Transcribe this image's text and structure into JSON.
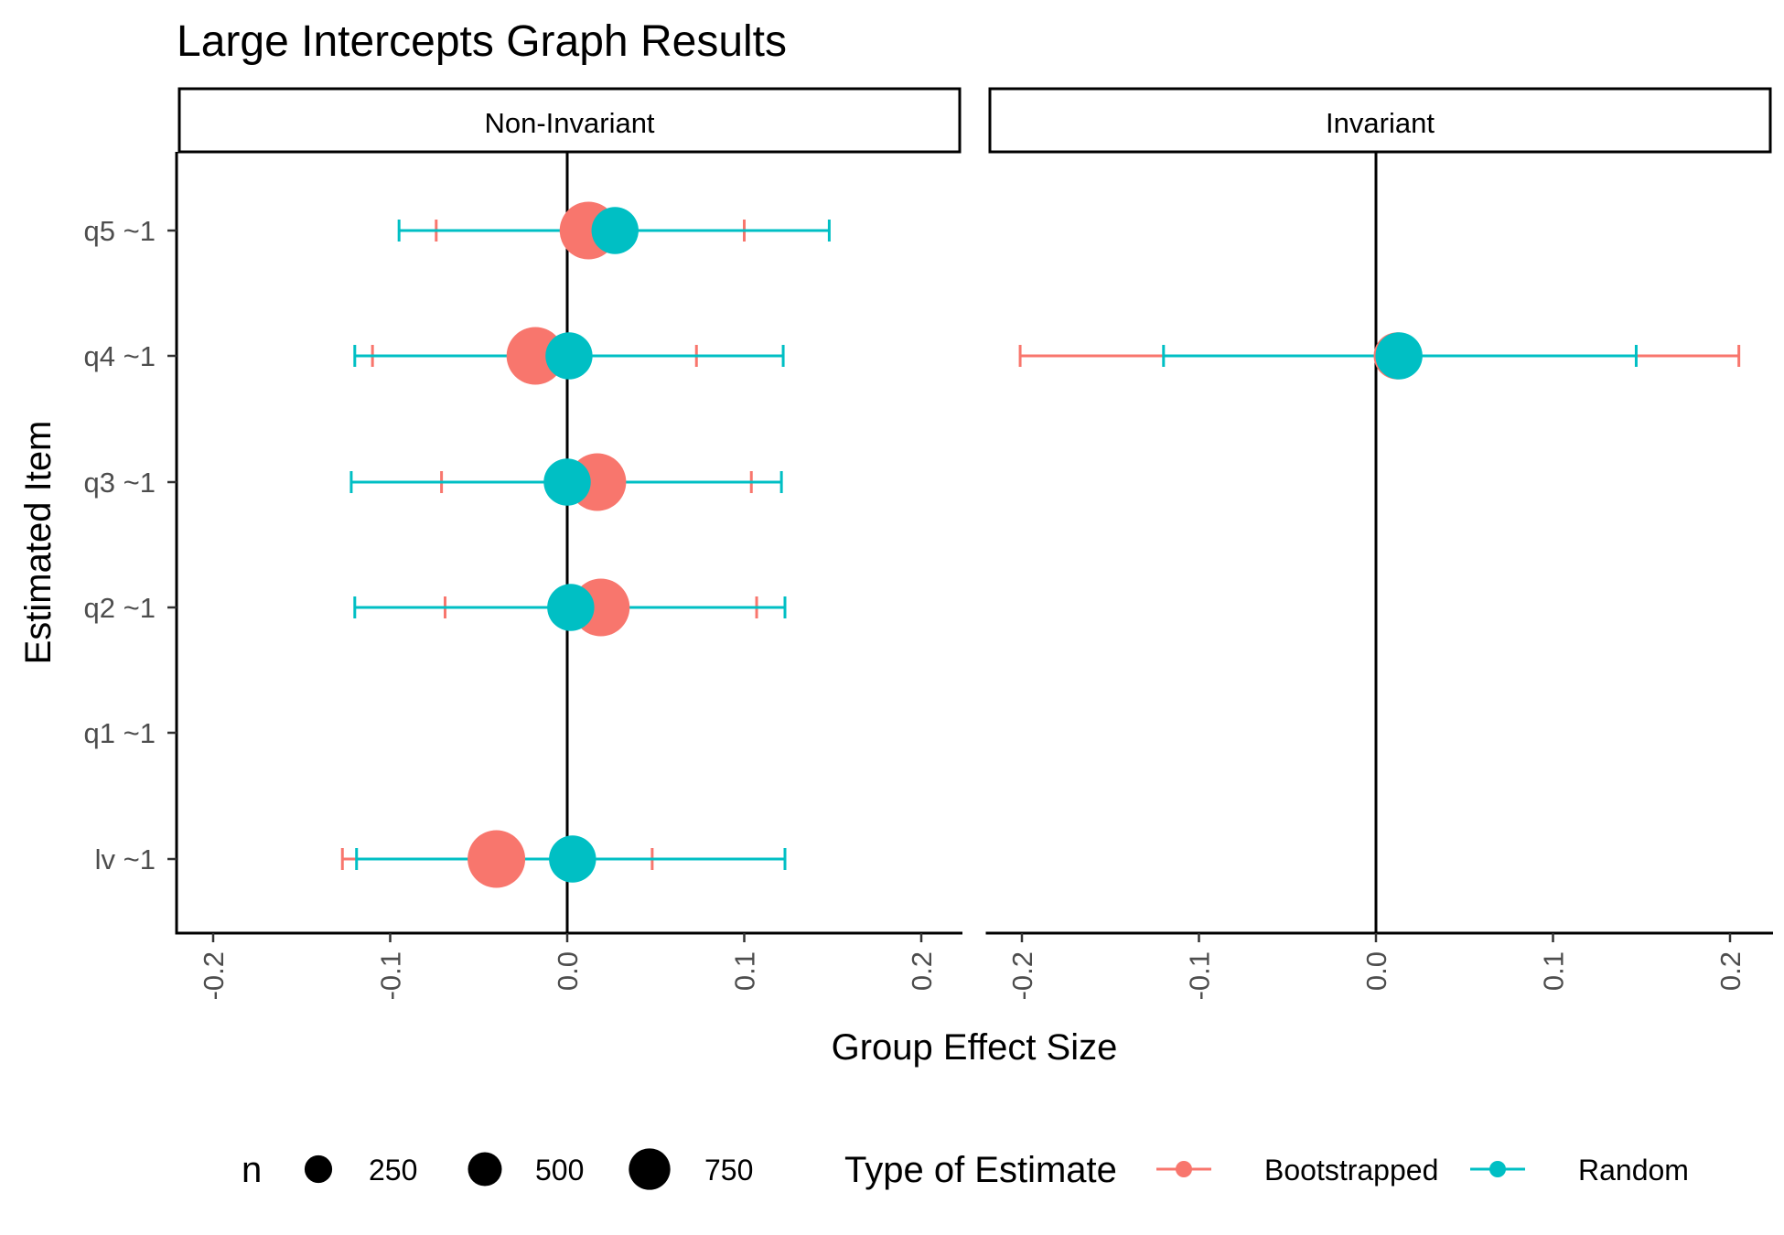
{
  "chart_data": {
    "type": "scatter",
    "title": "Large Intercepts Graph Results",
    "xlabel": "Group Effect Size",
    "ylabel": "Estimated Item",
    "xlim": [
      -0.22,
      0.22
    ],
    "x_ticks": [
      "-0.2",
      "-0.1",
      "0.0",
      "0.1",
      "0.2"
    ],
    "x_tick_values": [
      -0.2,
      -0.1,
      0.0,
      0.1,
      0.2
    ],
    "categories": [
      "lv ~1",
      "q1 ~1",
      "q2 ~1",
      "q3 ~1",
      "q4 ~1",
      "q5 ~1"
    ],
    "panels": [
      "Non-Invariant",
      "Invariant"
    ],
    "reference_line_x": 0,
    "series": [
      {
        "name": "Bootstrapped",
        "color": "#F8766D",
        "points": [
          {
            "panel": "Non-Invariant",
            "item": "q5 ~1",
            "x": 0.012,
            "lo": -0.074,
            "hi": 0.1,
            "n": 750
          },
          {
            "panel": "Non-Invariant",
            "item": "q4 ~1",
            "x": -0.018,
            "lo": -0.11,
            "hi": 0.073,
            "n": 750
          },
          {
            "panel": "Non-Invariant",
            "item": "q3 ~1",
            "x": 0.017,
            "lo": -0.071,
            "hi": 0.104,
            "n": 750
          },
          {
            "panel": "Non-Invariant",
            "item": "q2 ~1",
            "x": 0.019,
            "lo": -0.069,
            "hi": 0.107,
            "n": 750
          },
          {
            "panel": "Non-Invariant",
            "item": "lv ~1",
            "x": -0.04,
            "lo": -0.127,
            "hi": 0.048,
            "n": 750
          },
          {
            "panel": "Invariant",
            "item": "q4 ~1",
            "x": 0.012,
            "lo": -0.201,
            "hi": 0.205,
            "n": 500
          }
        ]
      },
      {
        "name": "Random",
        "color": "#00BFC4",
        "points": [
          {
            "panel": "Non-Invariant",
            "item": "q5 ~1",
            "x": 0.027,
            "lo": -0.095,
            "hi": 0.148,
            "n": 500
          },
          {
            "panel": "Non-Invariant",
            "item": "q4 ~1",
            "x": 0.001,
            "lo": -0.12,
            "hi": 0.122,
            "n": 500
          },
          {
            "panel": "Non-Invariant",
            "item": "q3 ~1",
            "x": 0.0,
            "lo": -0.122,
            "hi": 0.121,
            "n": 500
          },
          {
            "panel": "Non-Invariant",
            "item": "q2 ~1",
            "x": 0.002,
            "lo": -0.12,
            "hi": 0.123,
            "n": 500
          },
          {
            "panel": "Non-Invariant",
            "item": "lv ~1",
            "x": 0.003,
            "lo": -0.119,
            "hi": 0.123,
            "n": 500
          },
          {
            "panel": "Invariant",
            "item": "q4 ~1",
            "x": 0.013,
            "lo": -0.12,
            "hi": 0.147,
            "n": 500
          }
        ]
      }
    ],
    "legend": {
      "position": "bottom",
      "size_title": "n",
      "size_entries": [
        {
          "label": "250",
          "n": 250
        },
        {
          "label": "500",
          "n": 500
        },
        {
          "label": "750",
          "n": 750
        }
      ],
      "color_title": "Type of Estimate",
      "color_entries": [
        "Bootstrapped",
        "Random"
      ]
    },
    "grid": false
  }
}
